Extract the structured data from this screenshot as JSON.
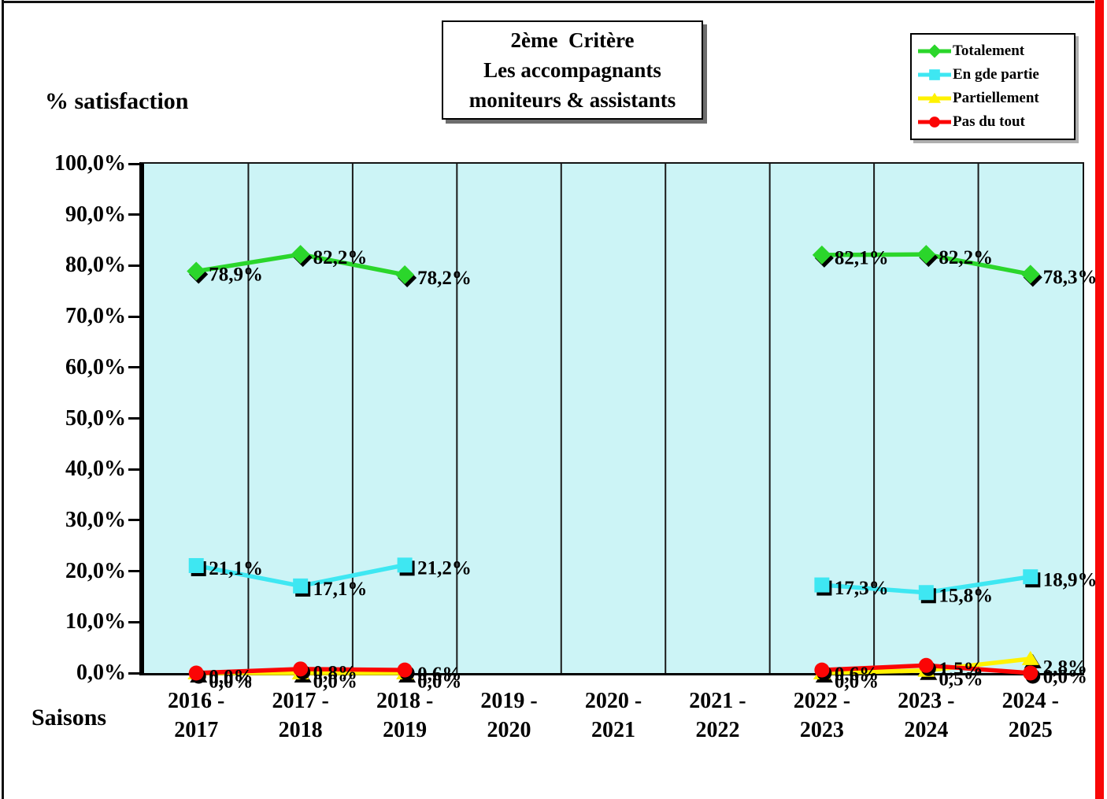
{
  "page": {
    "y_axis_title": "% satisfaction",
    "x_axis_title": "Saisons"
  },
  "title": {
    "lines": [
      "2ème  Critère",
      "Les accompagnants",
      "moniteurs & assistants"
    ]
  },
  "axis": {
    "y_tick_labels": [
      "100,0%",
      "90,0%",
      "80,0%",
      "70,0%",
      "60,0%",
      "50,0%",
      "40,0%",
      "30,0%",
      "20,0%",
      "10,0%",
      "0,0%"
    ]
  },
  "colors": {
    "plot_bg": "#CCF4F6",
    "grid": "#1A1A1A",
    "page_border_red": "#F90707",
    "marker_shadow": "#000000"
  },
  "chart_data": {
    "type": "line",
    "title": "2ème Critère — Les accompagnants moniteurs & assistants",
    "xlabel": "Saisons",
    "ylabel": "% satisfaction",
    "ylim": [
      0,
      100
    ],
    "y_tick_step": 10,
    "grid": "vertical",
    "legend_position": "top-right",
    "categories": [
      "2016 - 2017",
      "2017 - 2018",
      "2018 - 2019",
      "2019 - 2020",
      "2020 - 2021",
      "2021 - 2022",
      "2022 - 2023",
      "2023 - 2024",
      "2024 - 2025"
    ],
    "series": [
      {
        "name": "Totalement",
        "color": "#2BD62B",
        "marker": "diamond",
        "values": [
          78.9,
          82.2,
          78.2,
          null,
          null,
          null,
          82.1,
          82.2,
          78.3
        ],
        "labels": [
          "78,9%",
          "82,2%",
          "78,2%",
          "",
          "",
          "",
          "82,1%",
          "82,2%",
          "78,3%"
        ]
      },
      {
        "name": "En gde partie",
        "color": "#3EE7F2",
        "marker": "square",
        "values": [
          21.1,
          17.1,
          21.2,
          null,
          null,
          null,
          17.3,
          15.8,
          18.9
        ],
        "labels": [
          "21,1%",
          "17,1%",
          "21,2%",
          "",
          "",
          "",
          "17,3%",
          "15,8%",
          "18,9%"
        ]
      },
      {
        "name": "Partiellement",
        "color": "#FFF200",
        "marker": "triangle",
        "values": [
          0.0,
          0.0,
          0.0,
          null,
          null,
          null,
          0.0,
          0.5,
          2.8
        ],
        "labels": [
          "0,0%",
          "0,0%",
          "0,0%",
          "",
          "",
          "",
          "0,0%",
          "0,5%",
          "2,8%"
        ]
      },
      {
        "name": "Pas du tout",
        "color": "#FB0505",
        "marker": "circle",
        "values": [
          0.0,
          0.8,
          0.6,
          null,
          null,
          null,
          0.6,
          1.5,
          0.0
        ],
        "labels": [
          "0,0%",
          "0,8%",
          "0,6%",
          "",
          "",
          "",
          "0,6%",
          "1,5%",
          "0,0%"
        ]
      }
    ]
  }
}
